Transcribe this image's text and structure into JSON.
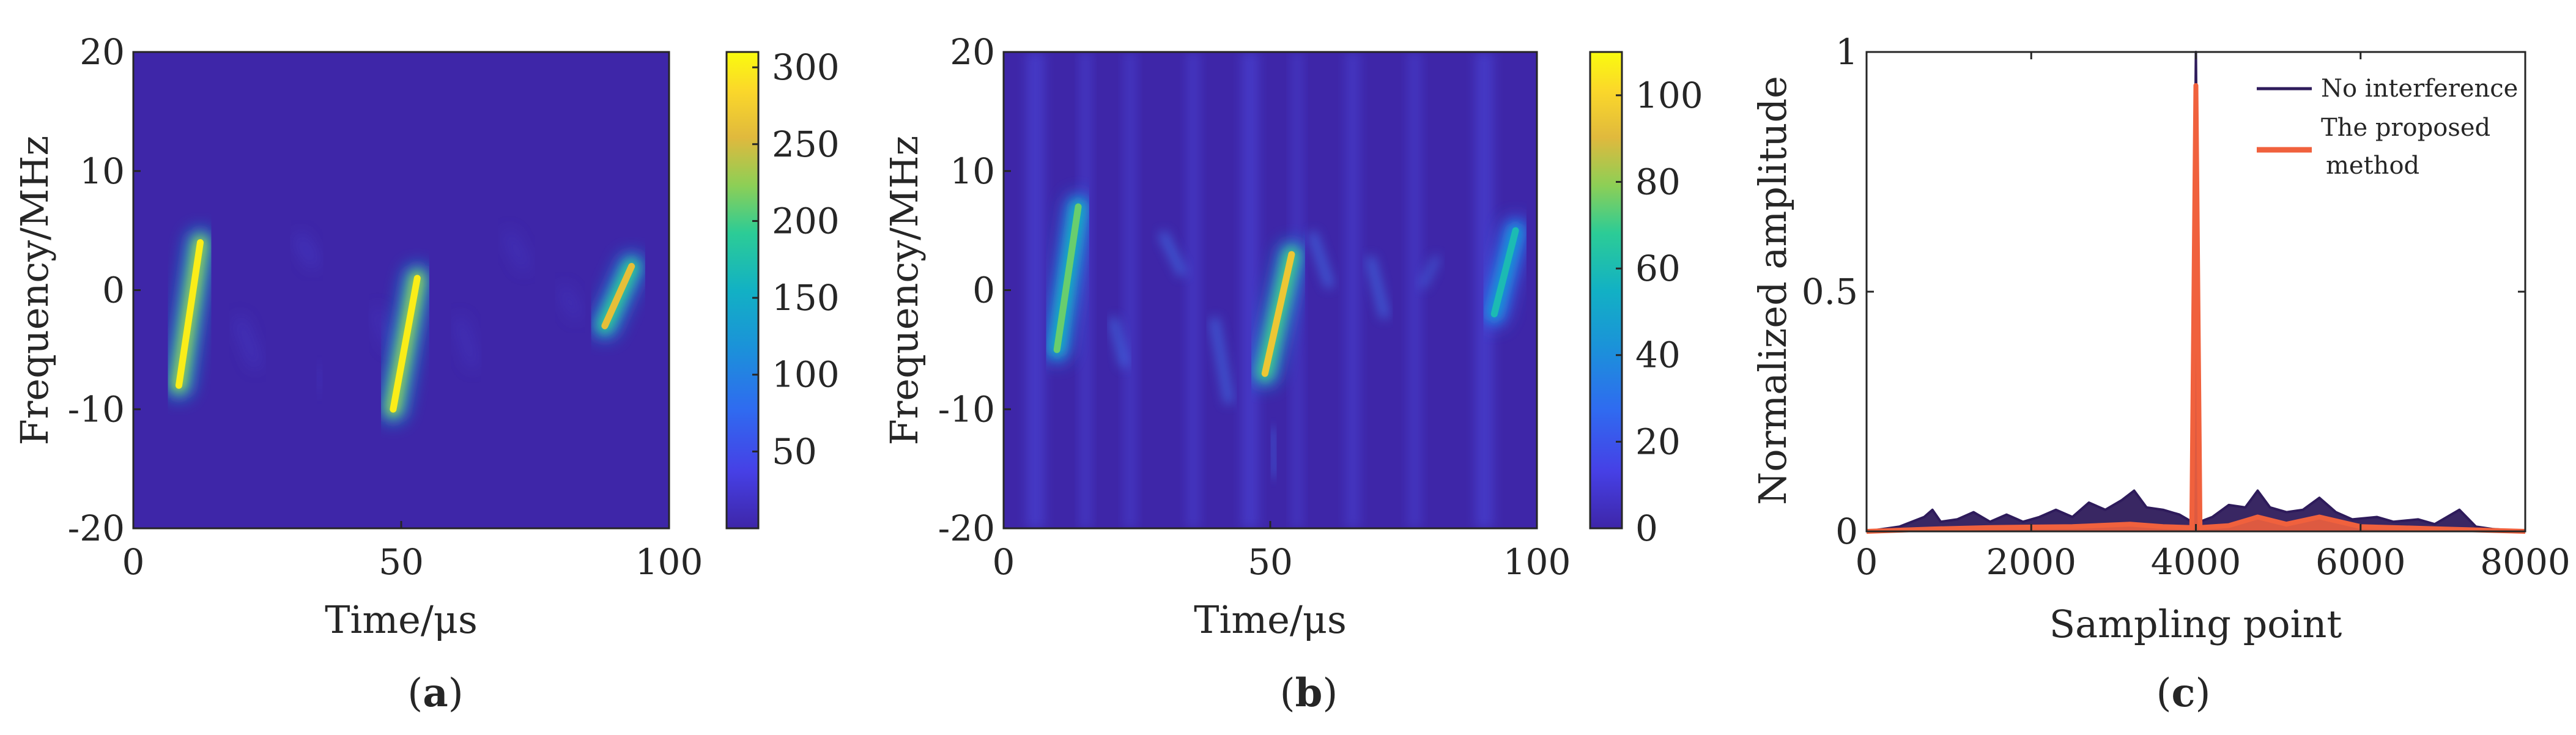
{
  "panel_labels": {
    "a_open": "(",
    "a_letter": "a",
    "a_close": ")",
    "b_open": "(",
    "b_letter": "b",
    "b_close": ")",
    "c_open": "(",
    "c_letter": "c",
    "c_close": ")"
  },
  "chart_data": [
    {
      "id": "a",
      "type": "heatmap",
      "xlabel": "Time/μs",
      "ylabel": "Frequency/MHz",
      "xlim": [
        0,
        100
      ],
      "ylim": [
        -20,
        20
      ],
      "xticks": [
        "0",
        "50",
        "100"
      ],
      "yticks": [
        "20",
        "10",
        "0",
        "-10",
        "-20"
      ],
      "colorbar": {
        "range": [
          0,
          310
        ],
        "ticks": [
          "300",
          "250",
          "200",
          "150",
          "100",
          "50"
        ],
        "colormap": "parula"
      },
      "features": [
        {
          "kind": "chirp",
          "t0": 8.5,
          "t1": 12.5,
          "f0": -8,
          "f1": 4,
          "value": 300
        },
        {
          "kind": "chirp",
          "t0": 48.5,
          "t1": 53,
          "f0": -10,
          "f1": 1,
          "value": 300
        },
        {
          "kind": "chirp",
          "t0": 88,
          "t1": 93,
          "f0": -3,
          "f1": 2,
          "value": 260
        }
      ]
    },
    {
      "id": "b",
      "type": "heatmap",
      "xlabel": "Time/μs",
      "ylabel": "Frequency/MHz",
      "xlim": [
        0,
        100
      ],
      "ylim": [
        -20,
        20
      ],
      "xticks": [
        "0",
        "50",
        "100"
      ],
      "yticks": [
        "20",
        "10",
        "0",
        "-10",
        "-20"
      ],
      "colorbar": {
        "range": [
          0,
          110
        ],
        "ticks": [
          "100",
          "80",
          "60",
          "40",
          "20",
          "0"
        ],
        "colormap": "parula"
      },
      "features": [
        {
          "kind": "chirp",
          "t0": 10,
          "t1": 14,
          "f0": -5,
          "f1": 7,
          "value": 75
        },
        {
          "kind": "chirp",
          "t0": 49,
          "t1": 54,
          "f0": -7,
          "f1": 3,
          "value": 95
        },
        {
          "kind": "chirp",
          "t0": 92,
          "t1": 96,
          "f0": -2,
          "f1": 5,
          "value": 60
        }
      ]
    },
    {
      "id": "c",
      "type": "line",
      "xlabel": "Sampling point",
      "ylabel": "Normalized amplitude",
      "xlim": [
        0,
        8000
      ],
      "ylim": [
        0,
        1
      ],
      "xticks": [
        "0",
        "2000",
        "4000",
        "6000",
        "8000"
      ],
      "yticks": [
        "1",
        "0.5",
        "0"
      ],
      "legend_position": "top-right",
      "peak": {
        "x": 4000,
        "no_interference": 1.0,
        "proposed": 0.93
      },
      "series": [
        {
          "name": "No interference",
          "color": "#2e1b5b",
          "points": [
            [
              0,
              0
            ],
            [
              400,
              0.01
            ],
            [
              700,
              0.03
            ],
            [
              800,
              0.045
            ],
            [
              900,
              0.02
            ],
            [
              1100,
              0.025
            ],
            [
              1300,
              0.04
            ],
            [
              1500,
              0.02
            ],
            [
              1700,
              0.035
            ],
            [
              1900,
              0.02
            ],
            [
              2100,
              0.03
            ],
            [
              2300,
              0.045
            ],
            [
              2500,
              0.03
            ],
            [
              2700,
              0.06
            ],
            [
              2900,
              0.045
            ],
            [
              3100,
              0.065
            ],
            [
              3250,
              0.085
            ],
            [
              3400,
              0.05
            ],
            [
              3600,
              0.045
            ],
            [
              3800,
              0.035
            ],
            [
              3950,
              0.02
            ],
            [
              4000,
              1.0
            ],
            [
              4050,
              0.02
            ],
            [
              4200,
              0.03
            ],
            [
              4400,
              0.055
            ],
            [
              4600,
              0.05
            ],
            [
              4750,
              0.085
            ],
            [
              4900,
              0.05
            ],
            [
              5100,
              0.04
            ],
            [
              5300,
              0.045
            ],
            [
              5500,
              0.07
            ],
            [
              5700,
              0.04
            ],
            [
              5900,
              0.025
            ],
            [
              6200,
              0.03
            ],
            [
              6400,
              0.02
            ],
            [
              6700,
              0.025
            ],
            [
              6900,
              0.015
            ],
            [
              7200,
              0.045
            ],
            [
              7400,
              0.01
            ],
            [
              7600,
              0.005
            ],
            [
              8000,
              0
            ]
          ]
        },
        {
          "name": "The proposed method",
          "name_line1": "The proposed",
          "name_line2": "method",
          "color": "#f0613d",
          "points": [
            [
              0,
              0
            ],
            [
              800,
              0.005
            ],
            [
              1500,
              0.008
            ],
            [
              2500,
              0.01
            ],
            [
              3200,
              0.015
            ],
            [
              3600,
              0.01
            ],
            [
              3950,
              0.008
            ],
            [
              4000,
              0.93
            ],
            [
              4050,
              0.008
            ],
            [
              4400,
              0.012
            ],
            [
              4750,
              0.03
            ],
            [
              5100,
              0.015
            ],
            [
              5500,
              0.03
            ],
            [
              6000,
              0.01
            ],
            [
              7000,
              0.005
            ],
            [
              8000,
              0
            ]
          ]
        }
      ]
    }
  ]
}
